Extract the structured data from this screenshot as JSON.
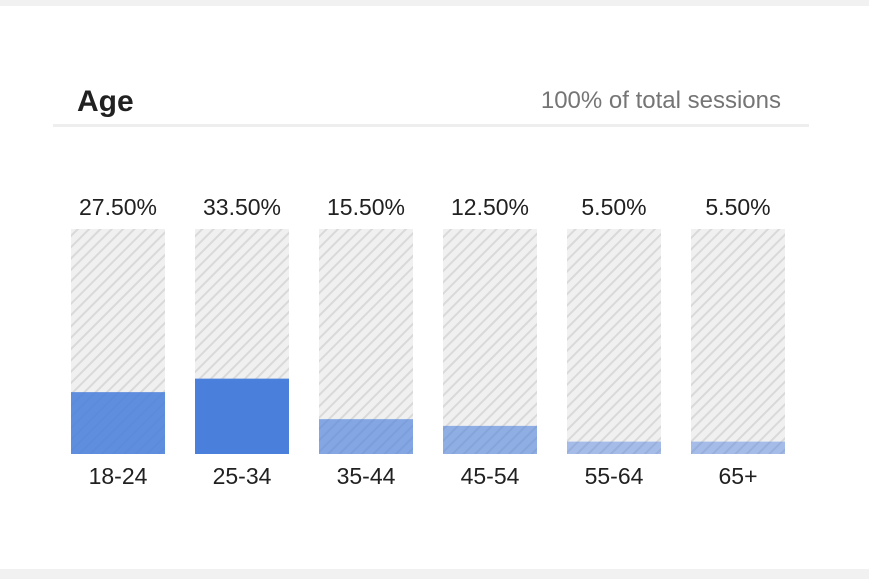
{
  "header": {
    "title": "Age",
    "subtitle": "100% of total sessions"
  },
  "colors": {
    "bar_fill": "#4a7fdc",
    "track_hatch": "#d9d9d9",
    "track_bg": "#f0f0f0"
  },
  "chart_data": {
    "type": "bar",
    "title": "Age",
    "subtitle": "100% of total sessions",
    "categories": [
      "18-24",
      "25-34",
      "35-44",
      "45-54",
      "55-64",
      "65+"
    ],
    "values": [
      27.5,
      33.5,
      15.5,
      12.5,
      5.5,
      5.5
    ],
    "value_labels": [
      "27.50%",
      "33.50%",
      "15.50%",
      "12.50%",
      "5.50%",
      "5.50%"
    ],
    "ylim": [
      0,
      100
    ],
    "grid": false,
    "legend": "none"
  }
}
